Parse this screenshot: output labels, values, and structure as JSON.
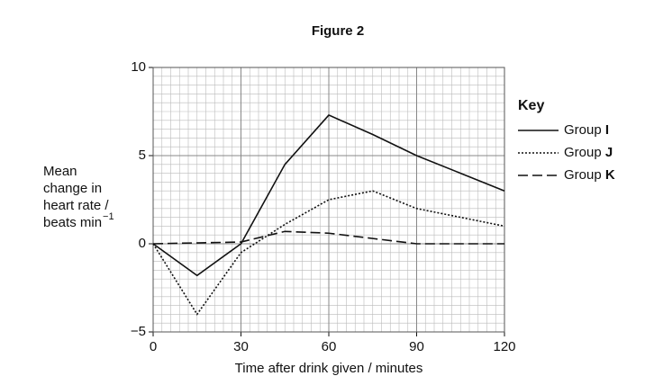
{
  "chart_data": {
    "type": "line",
    "title": "Figure 2",
    "x_label": "Time after drink given / minutes",
    "y_label_lines": [
      "Mean",
      "change in",
      "heart rate /",
      "beats min"
    ],
    "y_label_superscript": "−1",
    "legend_title": "Key",
    "x": [
      0,
      15,
      30,
      45,
      60,
      75,
      90,
      105,
      120
    ],
    "series": [
      {
        "name": "Group I",
        "color": "#111111",
        "line_style": "solid",
        "values": [
          0,
          -1.8,
          0,
          4.5,
          7.3,
          6.2,
          5,
          4,
          3
        ]
      },
      {
        "name": "Group J",
        "color": "#111111",
        "line_style": "dotted",
        "values": [
          0,
          -4,
          -0.5,
          1.1,
          2.5,
          3,
          2,
          1.5,
          1
        ]
      },
      {
        "name": "Group K",
        "color": "#111111",
        "line_style": "dashed",
        "values": [
          0,
          0.05,
          0.1,
          0.7,
          0.6,
          0.3,
          0,
          0,
          0
        ]
      }
    ],
    "xlim": [
      0,
      120
    ],
    "xticks": [
      0,
      30,
      60,
      90,
      120
    ],
    "ylim": [
      -5,
      10
    ],
    "yticks": [
      {
        "value": -5,
        "label": "−5"
      },
      0,
      5,
      10
    ],
    "grid": true,
    "minor_divisions": 10
  }
}
